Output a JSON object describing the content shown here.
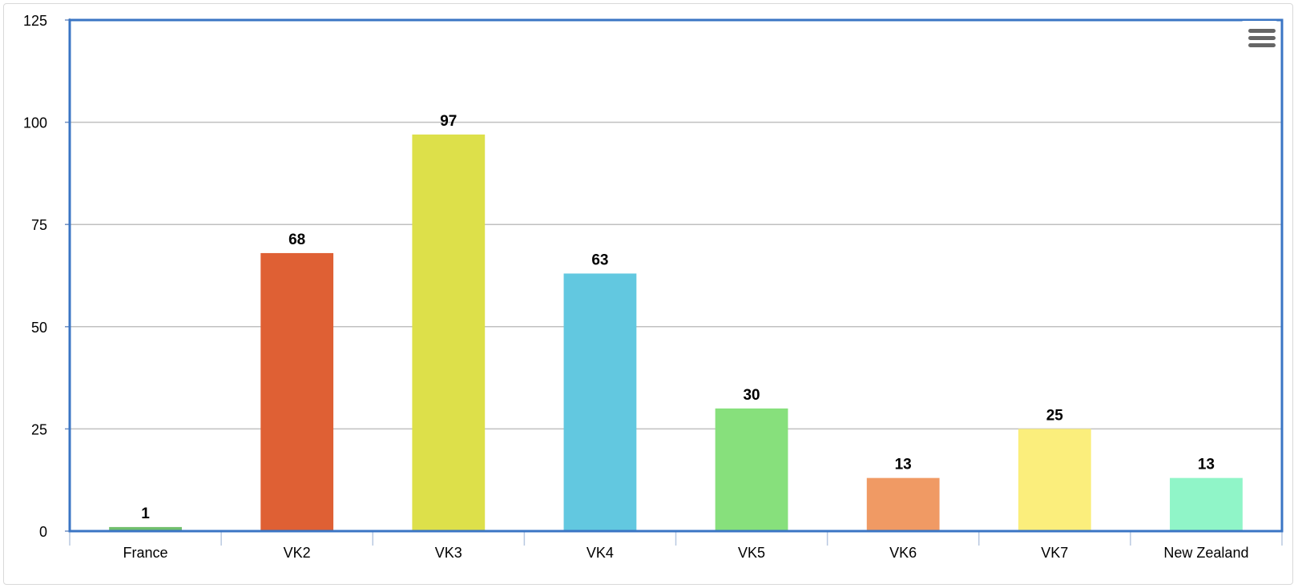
{
  "menu": {
    "icon": "hamburger-menu-icon"
  },
  "chart_data": {
    "type": "bar",
    "categories": [
      "France",
      "VK2",
      "VK3",
      "VK4",
      "VK5",
      "VK6",
      "VK7",
      "New Zealand"
    ],
    "values": [
      1,
      68,
      97,
      63,
      30,
      13,
      25,
      13
    ],
    "data_labels": [
      "1",
      "68",
      "97",
      "63",
      "30",
      "13",
      "25",
      "13"
    ],
    "colors": [
      "#71bf6c",
      "#df6034",
      "#dde04a",
      "#62c8e0",
      "#87e07c",
      "#f09a64",
      "#fbee7c",
      "#90f5c8"
    ],
    "ylim": [
      0,
      125
    ],
    "yticks": [
      0,
      25,
      50,
      75,
      100,
      125
    ],
    "ytick_labels": [
      "0",
      "25",
      "50",
      "75",
      "100",
      "125"
    ],
    "title": "",
    "xlabel": "",
    "ylabel": "",
    "grid": true,
    "legend": "none",
    "plot_border_color": "#3a75c4",
    "grid_color": "#c0c0c0"
  }
}
